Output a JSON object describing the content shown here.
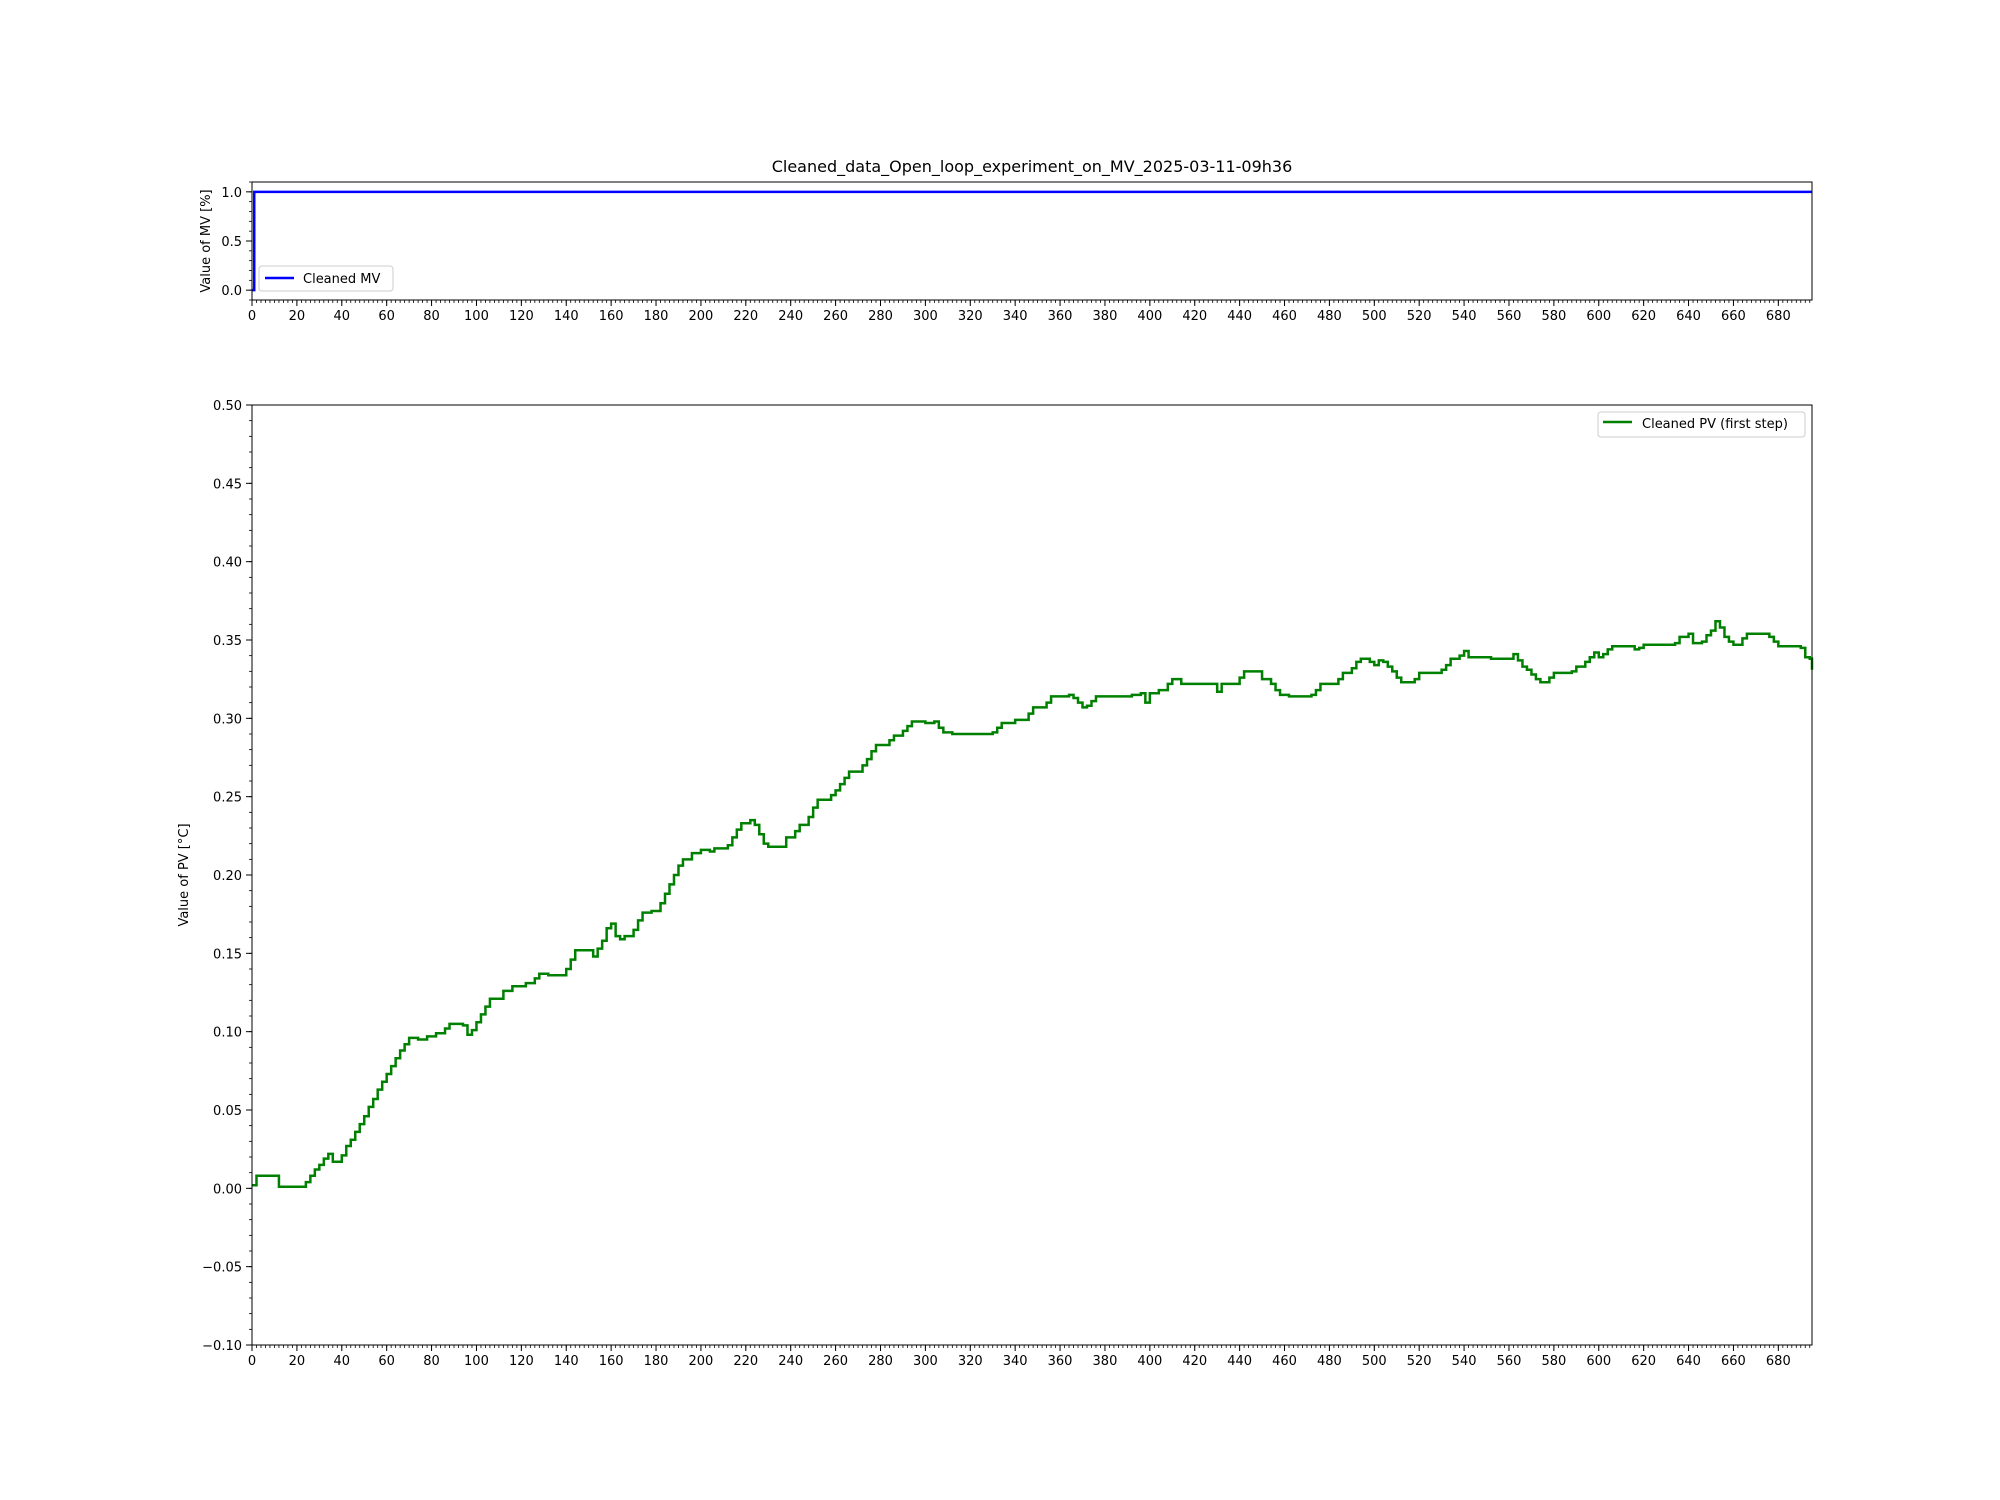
{
  "figure": {
    "title": "Cleaned_data_Open_loop_experiment_on_MV_2025-03-11-09h36"
  },
  "chart_data": [
    {
      "type": "line",
      "xlabel": "",
      "ylabel": "Value of MV [%]",
      "xlim": [
        0,
        695
      ],
      "ylim": [
        -0.1,
        1.1
      ],
      "x_ticks": [
        0,
        20,
        40,
        60,
        80,
        100,
        120,
        140,
        160,
        180,
        200,
        220,
        240,
        260,
        280,
        300,
        320,
        340,
        360,
        380,
        400,
        420,
        440,
        460,
        480,
        500,
        520,
        540,
        560,
        580,
        600,
        620,
        640,
        660,
        680
      ],
      "y_ticks": [
        0.0,
        0.5,
        1.0
      ],
      "y_tick_labels": [
        "0.0",
        "0.5",
        "1.0"
      ],
      "grid": false,
      "legend_position": "lower-left",
      "series": [
        {
          "name": "Cleaned MV",
          "color": "#0000ff",
          "step": true,
          "points": [
            [
              0,
              0
            ],
            [
              1,
              0
            ],
            [
              1,
              1
            ],
            [
              695,
              1
            ]
          ]
        }
      ]
    },
    {
      "type": "line",
      "xlabel": "",
      "ylabel": "Value of PV [°C]",
      "xlim": [
        0,
        695
      ],
      "ylim": [
        -0.1,
        0.5
      ],
      "x_ticks": [
        0,
        20,
        40,
        60,
        80,
        100,
        120,
        140,
        160,
        180,
        200,
        220,
        240,
        260,
        280,
        300,
        320,
        340,
        360,
        380,
        400,
        420,
        440,
        460,
        480,
        500,
        520,
        540,
        560,
        580,
        600,
        620,
        640,
        660,
        680
      ],
      "y_ticks": [
        -0.1,
        -0.05,
        0.0,
        0.05,
        0.1,
        0.15,
        0.2,
        0.25,
        0.3,
        0.35,
        0.4,
        0.45,
        0.5
      ],
      "y_tick_labels": [
        "−0.10",
        "−0.05",
        "0.00",
        "0.05",
        "0.10",
        "0.15",
        "0.20",
        "0.25",
        "0.30",
        "0.35",
        "0.40",
        "0.45",
        "0.50"
      ],
      "grid": false,
      "legend_position": "upper-right",
      "series": [
        {
          "name": "Cleaned PV (first step)",
          "color": "#008000",
          "step": true,
          "points": [
            [
              0,
              0.002
            ],
            [
              2,
              0.008
            ],
            [
              10,
              0.008
            ],
            [
              12,
              0.001
            ],
            [
              22,
              0.001
            ],
            [
              24,
              0.004
            ],
            [
              26,
              0.008
            ],
            [
              28,
              0.012
            ],
            [
              30,
              0.015
            ],
            [
              32,
              0.019
            ],
            [
              34,
              0.022
            ],
            [
              36,
              0.017
            ],
            [
              40,
              0.021
            ],
            [
              42,
              0.027
            ],
            [
              44,
              0.031
            ],
            [
              46,
              0.036
            ],
            [
              48,
              0.041
            ],
            [
              50,
              0.046
            ],
            [
              52,
              0.052
            ],
            [
              54,
              0.057
            ],
            [
              56,
              0.063
            ],
            [
              58,
              0.068
            ],
            [
              60,
              0.073
            ],
            [
              62,
              0.078
            ],
            [
              64,
              0.083
            ],
            [
              66,
              0.088
            ],
            [
              68,
              0.092
            ],
            [
              70,
              0.096
            ],
            [
              74,
              0.095
            ],
            [
              78,
              0.097
            ],
            [
              82,
              0.099
            ],
            [
              86,
              0.102
            ],
            [
              88,
              0.105
            ],
            [
              94,
              0.104
            ],
            [
              96,
              0.098
            ],
            [
              98,
              0.101
            ],
            [
              100,
              0.106
            ],
            [
              102,
              0.111
            ],
            [
              104,
              0.116
            ],
            [
              106,
              0.121
            ],
            [
              112,
              0.126
            ],
            [
              116,
              0.129
            ],
            [
              122,
              0.131
            ],
            [
              126,
              0.134
            ],
            [
              128,
              0.137
            ],
            [
              132,
              0.136
            ],
            [
              140,
              0.14
            ],
            [
              142,
              0.146
            ],
            [
              144,
              0.152
            ],
            [
              150,
              0.152
            ],
            [
              152,
              0.148
            ],
            [
              154,
              0.153
            ],
            [
              156,
              0.158
            ],
            [
              158,
              0.166
            ],
            [
              160,
              0.169
            ],
            [
              162,
              0.161
            ],
            [
              164,
              0.159
            ],
            [
              166,
              0.161
            ],
            [
              170,
              0.165
            ],
            [
              172,
              0.171
            ],
            [
              174,
              0.176
            ],
            [
              178,
              0.177
            ],
            [
              182,
              0.182
            ],
            [
              184,
              0.188
            ],
            [
              186,
              0.194
            ],
            [
              188,
              0.2
            ],
            [
              190,
              0.206
            ],
            [
              192,
              0.21
            ],
            [
              196,
              0.214
            ],
            [
              200,
              0.216
            ],
            [
              204,
              0.215
            ],
            [
              206,
              0.217
            ],
            [
              212,
              0.219
            ],
            [
              214,
              0.224
            ],
            [
              216,
              0.229
            ],
            [
              218,
              0.233
            ],
            [
              222,
              0.235
            ],
            [
              224,
              0.232
            ],
            [
              226,
              0.226
            ],
            [
              228,
              0.22
            ],
            [
              230,
              0.218
            ],
            [
              236,
              0.218
            ],
            [
              238,
              0.224
            ],
            [
              242,
              0.228
            ],
            [
              244,
              0.232
            ],
            [
              248,
              0.237
            ],
            [
              250,
              0.243
            ],
            [
              252,
              0.248
            ],
            [
              258,
              0.251
            ],
            [
              260,
              0.254
            ],
            [
              262,
              0.258
            ],
            [
              264,
              0.262
            ],
            [
              266,
              0.266
            ],
            [
              272,
              0.27
            ],
            [
              274,
              0.274
            ],
            [
              276,
              0.279
            ],
            [
              278,
              0.283
            ],
            [
              284,
              0.286
            ],
            [
              286,
              0.289
            ],
            [
              290,
              0.292
            ],
            [
              292,
              0.295
            ],
            [
              294,
              0.298
            ],
            [
              300,
              0.297
            ],
            [
              304,
              0.298
            ],
            [
              306,
              0.294
            ],
            [
              308,
              0.291
            ],
            [
              312,
              0.29
            ],
            [
              330,
              0.291
            ],
            [
              332,
              0.294
            ],
            [
              334,
              0.297
            ],
            [
              340,
              0.299
            ],
            [
              346,
              0.303
            ],
            [
              348,
              0.307
            ],
            [
              354,
              0.31
            ],
            [
              356,
              0.314
            ],
            [
              364,
              0.315
            ],
            [
              366,
              0.313
            ],
            [
              368,
              0.31
            ],
            [
              370,
              0.307
            ],
            [
              372,
              0.308
            ],
            [
              374,
              0.311
            ],
            [
              376,
              0.314
            ],
            [
              388,
              0.314
            ],
            [
              392,
              0.315
            ],
            [
              396,
              0.316
            ],
            [
              398,
              0.31
            ],
            [
              400,
              0.316
            ],
            [
              404,
              0.318
            ],
            [
              408,
              0.322
            ],
            [
              410,
              0.325
            ],
            [
              414,
              0.322
            ],
            [
              428,
              0.322
            ],
            [
              430,
              0.317
            ],
            [
              432,
              0.322
            ],
            [
              440,
              0.326
            ],
            [
              442,
              0.33
            ],
            [
              448,
              0.33
            ],
            [
              450,
              0.325
            ],
            [
              454,
              0.322
            ],
            [
              456,
              0.318
            ],
            [
              458,
              0.315
            ],
            [
              462,
              0.314
            ],
            [
              472,
              0.315
            ],
            [
              474,
              0.318
            ],
            [
              476,
              0.322
            ],
            [
              484,
              0.325
            ],
            [
              486,
              0.329
            ],
            [
              490,
              0.332
            ],
            [
              492,
              0.336
            ],
            [
              494,
              0.338
            ],
            [
              498,
              0.336
            ],
            [
              500,
              0.334
            ],
            [
              502,
              0.337
            ],
            [
              504,
              0.336
            ],
            [
              506,
              0.333
            ],
            [
              508,
              0.33
            ],
            [
              510,
              0.326
            ],
            [
              512,
              0.323
            ],
            [
              518,
              0.325
            ],
            [
              520,
              0.329
            ],
            [
              530,
              0.331
            ],
            [
              532,
              0.334
            ],
            [
              534,
              0.338
            ],
            [
              538,
              0.34
            ],
            [
              540,
              0.343
            ],
            [
              542,
              0.339
            ],
            [
              552,
              0.338
            ],
            [
              560,
              0.338
            ],
            [
              562,
              0.341
            ],
            [
              564,
              0.337
            ],
            [
              566,
              0.333
            ],
            [
              568,
              0.331
            ],
            [
              570,
              0.328
            ],
            [
              572,
              0.325
            ],
            [
              574,
              0.323
            ],
            [
              578,
              0.326
            ],
            [
              580,
              0.329
            ],
            [
              588,
              0.33
            ],
            [
              590,
              0.333
            ],
            [
              594,
              0.336
            ],
            [
              596,
              0.339
            ],
            [
              598,
              0.342
            ],
            [
              600,
              0.339
            ],
            [
              602,
              0.341
            ],
            [
              604,
              0.344
            ],
            [
              606,
              0.346
            ],
            [
              614,
              0.346
            ],
            [
              616,
              0.344
            ],
            [
              618,
              0.345
            ],
            [
              620,
              0.347
            ],
            [
              634,
              0.348
            ],
            [
              636,
              0.352
            ],
            [
              640,
              0.354
            ],
            [
              642,
              0.348
            ],
            [
              646,
              0.349
            ],
            [
              648,
              0.353
            ],
            [
              650,
              0.356
            ],
            [
              652,
              0.362
            ],
            [
              654,
              0.358
            ],
            [
              656,
              0.352
            ],
            [
              658,
              0.349
            ],
            [
              660,
              0.347
            ],
            [
              664,
              0.351
            ],
            [
              666,
              0.354
            ],
            [
              676,
              0.352
            ],
            [
              678,
              0.349
            ],
            [
              680,
              0.346
            ],
            [
              690,
              0.345
            ],
            [
              692,
              0.339
            ],
            [
              694,
              0.338
            ],
            [
              695,
              0.331
            ]
          ]
        }
      ]
    }
  ]
}
